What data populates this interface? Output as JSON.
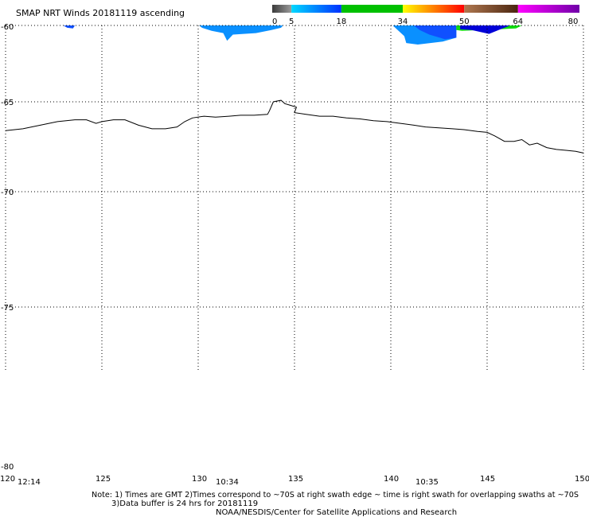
{
  "title": "SMAP NRT Winds 20181119 ascending",
  "colorbar": {
    "tick_labels": [
      "0",
      "5",
      "18",
      "34",
      "50",
      "64",
      "80"
    ],
    "segments": [
      {
        "from": 0,
        "to": 5,
        "colors": [
          "#3a3a3a",
          "#9a9a9a"
        ]
      },
      {
        "from": 5,
        "to": 18,
        "colors": [
          "#00d8ff",
          "#0030ff"
        ]
      },
      {
        "from": 18,
        "to": 34,
        "colors": [
          "#00c000",
          "#00c000"
        ]
      },
      {
        "from": 34,
        "to": 50,
        "colors": [
          "#ffff00",
          "#ff8000",
          "#ff0000"
        ]
      },
      {
        "from": 50,
        "to": 64,
        "colors": [
          "#b07850",
          "#4a2510"
        ]
      },
      {
        "from": 64,
        "to": 80,
        "colors": [
          "#ff00ff",
          "#7000a8"
        ]
      }
    ]
  },
  "lat_labels": [
    "-60",
    "-65",
    "-70",
    "-75",
    "-80"
  ],
  "lon_labels": [
    "120",
    "125",
    "130",
    "135",
    "140",
    "145",
    "150"
  ],
  "swath_times": [
    {
      "label": "12:14",
      "lon": 120.6
    },
    {
      "label": "10:34",
      "lon": 130.9
    },
    {
      "label": "10:35",
      "lon": 141.3
    }
  ],
  "notes": [
    "Note: 1) Times are GMT 2)Times correspond to ~70S at right swath edge ~ time is right swath for overlapping swaths at ~70S",
    "3)Data buffer is 24 hrs for 20181119",
    "NOAA/NESDIS/Center for Satellite Applications and Research"
  ],
  "map_extent": {
    "lon": [
      120,
      150
    ],
    "lat": [
      -80,
      -60
    ]
  },
  "colors": {
    "swath_light": "#0a90ff",
    "swath_dark": "#1050ff",
    "swath_navy": "#0000d8",
    "swath_green": "#10dc10"
  },
  "coastline": [
    [
      120.0,
      -66.6
    ],
    [
      120.9,
      -66.5
    ],
    [
      121.8,
      -66.3
    ],
    [
      122.7,
      -66.1
    ],
    [
      123.6,
      -66.0
    ],
    [
      124.2,
      -66.0
    ],
    [
      124.7,
      -66.2
    ],
    [
      125.0,
      -66.1
    ],
    [
      125.6,
      -66.0
    ],
    [
      126.2,
      -66.0
    ],
    [
      126.9,
      -66.3
    ],
    [
      127.6,
      -66.5
    ],
    [
      128.3,
      -66.5
    ],
    [
      128.9,
      -66.4
    ],
    [
      129.3,
      -66.1
    ],
    [
      129.7,
      -65.9
    ],
    [
      130.3,
      -65.8
    ],
    [
      130.9,
      -65.85
    ],
    [
      131.6,
      -65.8
    ],
    [
      132.2,
      -65.75
    ],
    [
      132.9,
      -65.75
    ],
    [
      133.6,
      -65.7
    ],
    [
      133.7,
      -65.5
    ],
    [
      133.9,
      -65.0
    ],
    [
      134.3,
      -64.9
    ],
    [
      134.5,
      -65.1
    ],
    [
      134.8,
      -65.2
    ],
    [
      135.1,
      -65.3
    ],
    [
      135.0,
      -65.6
    ],
    [
      135.6,
      -65.7
    ],
    [
      136.3,
      -65.8
    ],
    [
      137.0,
      -65.8
    ],
    [
      137.7,
      -65.9
    ],
    [
      138.4,
      -65.95
    ],
    [
      139.1,
      -66.05
    ],
    [
      139.8,
      -66.1
    ],
    [
      140.5,
      -66.2
    ],
    [
      141.2,
      -66.3
    ],
    [
      141.8,
      -66.4
    ],
    [
      142.5,
      -66.45
    ],
    [
      143.2,
      -66.5
    ],
    [
      143.8,
      -66.55
    ],
    [
      144.5,
      -66.65
    ],
    [
      145.0,
      -66.7
    ],
    [
      145.4,
      -66.9
    ],
    [
      145.9,
      -67.2
    ],
    [
      146.4,
      -67.2
    ],
    [
      146.8,
      -67.1
    ],
    [
      147.2,
      -67.4
    ],
    [
      147.6,
      -67.3
    ],
    [
      148.1,
      -67.55
    ],
    [
      148.6,
      -67.65
    ],
    [
      149.1,
      -67.7
    ],
    [
      149.6,
      -67.75
    ],
    [
      150.0,
      -67.85
    ]
  ],
  "swaths": [
    {
      "color": "swath_dark",
      "outline": [
        [
          123.0,
          -60.0
        ],
        [
          123.6,
          -60.0
        ],
        [
          123.5,
          -60.2
        ],
        [
          123.2,
          -60.15
        ]
      ]
    },
    {
      "color": "swath_light",
      "outline": [
        [
          130.05,
          -60.0
        ],
        [
          134.4,
          -60.0
        ],
        [
          134.3,
          -60.15
        ],
        [
          133.8,
          -60.3
        ],
        [
          133.0,
          -60.5
        ],
        [
          131.8,
          -60.6
        ],
        [
          131.5,
          -61.0
        ],
        [
          131.3,
          -60.5
        ],
        [
          130.7,
          -60.35
        ],
        [
          130.2,
          -60.15
        ]
      ]
    },
    {
      "color": "swath_light",
      "outline": [
        [
          140.1,
          -60.0
        ],
        [
          143.4,
          -60.0
        ],
        [
          143.4,
          -60.8
        ],
        [
          142.7,
          -61.05
        ],
        [
          141.4,
          -61.25
        ],
        [
          140.8,
          -61.15
        ],
        [
          140.7,
          -60.7
        ],
        [
          140.4,
          -60.35
        ]
      ]
    },
    {
      "color": "swath_dark",
      "outline": [
        [
          141.2,
          -60.0
        ],
        [
          143.4,
          -60.0
        ],
        [
          143.4,
          -60.8
        ],
        [
          142.8,
          -60.9
        ],
        [
          142.0,
          -60.6
        ],
        [
          141.5,
          -60.3
        ]
      ]
    },
    {
      "color": "swath_green",
      "outline": [
        [
          143.4,
          -60.0
        ],
        [
          146.8,
          -60.0
        ],
        [
          146.5,
          -60.2
        ],
        [
          143.7,
          -60.35
        ],
        [
          143.4,
          -60.3
        ]
      ]
    },
    {
      "color": "swath_navy",
      "outline": [
        [
          143.6,
          -60.0
        ],
        [
          146.2,
          -60.0
        ],
        [
          145.7,
          -60.25
        ],
        [
          145.1,
          -60.55
        ],
        [
          144.2,
          -60.3
        ],
        [
          143.6,
          -60.25
        ]
      ]
    }
  ]
}
